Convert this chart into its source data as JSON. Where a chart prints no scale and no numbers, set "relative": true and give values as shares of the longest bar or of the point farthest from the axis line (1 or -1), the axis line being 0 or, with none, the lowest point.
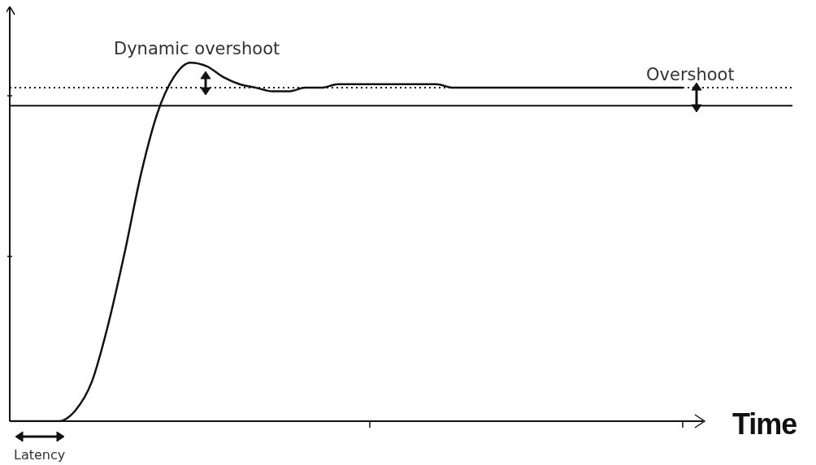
{
  "chart_data": {
    "type": "line",
    "relative": true,
    "xlabel": "Time",
    "categories": [
      null,
      null,
      null,
      null,
      null,
      null,
      null,
      null,
      null,
      null,
      null,
      null,
      null,
      null,
      null,
      null,
      null,
      null,
      null,
      null,
      null,
      null,
      null,
      null,
      null,
      null,
      null,
      null,
      null,
      null,
      null,
      null,
      null,
      null,
      null,
      null,
      null,
      null,
      null,
      null,
      null,
      null
    ],
    "series": [
      {
        "color": "#111111",
        "values": [
          0,
          0,
          0,
          0,
          0.03,
          0.11,
          0.27,
          0.47,
          0.69,
          0.86,
          0.96,
          1,
          0.99,
          0.96,
          0.94,
          0.93,
          0.92,
          0.92,
          0.93,
          0.93,
          0.94,
          0.94,
          0.94,
          0.94,
          0.94,
          0.94,
          0.94,
          0.93,
          0.93,
          0.93,
          0.93,
          0.93,
          0.93,
          0.93,
          0.93,
          0.93,
          0.93,
          0.93,
          0.93,
          0.93,
          0.93,
          0.93
        ]
      }
    ],
    "ref_lines": [
      {
        "axis": "y",
        "value": 0.88,
        "color": "#111111",
        "line_style": "solid"
      },
      {
        "axis": "y",
        "value": 0.93,
        "color": "#111111",
        "line_style": "dotted"
      }
    ],
    "annotations": [
      "Dynamic overshoot",
      "Overshoot",
      "Latency"
    ],
    "legend": false,
    "marker": "none",
    "line_style": "solid"
  }
}
